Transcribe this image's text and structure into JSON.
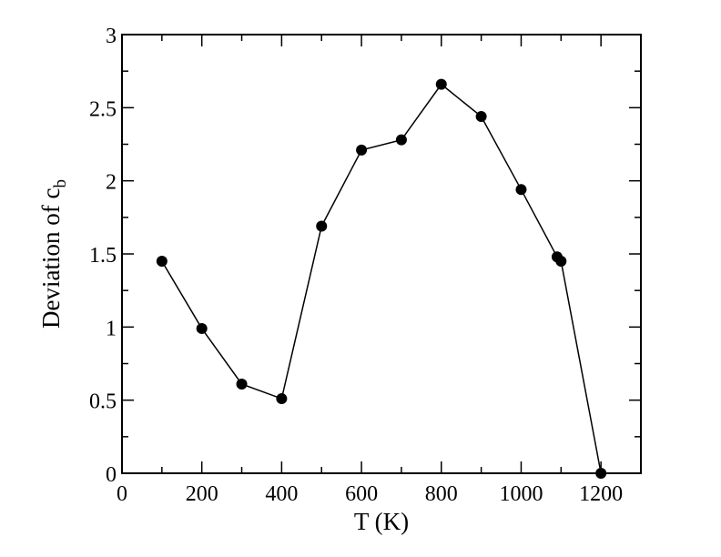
{
  "chart_data": {
    "type": "line",
    "title": "",
    "xlabel": "T (K)",
    "ylabel": {
      "main": "Deviation of c",
      "subscript": "b"
    },
    "xlim": [
      0,
      1300
    ],
    "ylim": [
      0,
      3
    ],
    "xticks": [
      0,
      200,
      400,
      600,
      800,
      1000,
      1200
    ],
    "yticks": [
      0,
      0.5,
      1,
      1.5,
      2,
      2.5,
      3
    ],
    "xtick_labels": [
      "0",
      "200",
      "400",
      "600",
      "800",
      "1000",
      "1200"
    ],
    "ytick_labels": [
      "0",
      "0.5",
      "1",
      "1.5",
      "2",
      "2.5",
      "3"
    ],
    "grid": false,
    "legend": "none",
    "marker": "filled-circle",
    "color": "#000000",
    "series": [
      {
        "x": [
          100,
          200,
          300,
          400,
          500,
          600,
          700,
          800,
          900,
          1000,
          1090,
          1100,
          1200
        ],
        "y": [
          1.45,
          0.99,
          0.61,
          0.51,
          1.69,
          2.21,
          2.28,
          2.66,
          2.44,
          1.94,
          1.48,
          1.45,
          0.0
        ]
      }
    ]
  }
}
